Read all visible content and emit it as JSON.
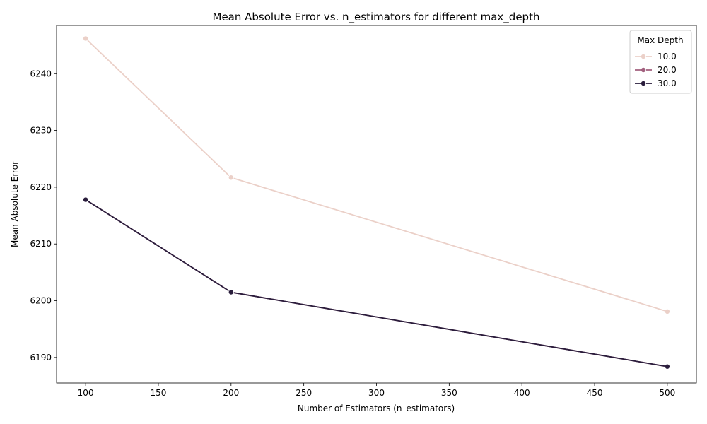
{
  "chart_data": {
    "type": "line",
    "title": "Mean Absolute Error vs. n_estimators for different max_depth",
    "xlabel": "Number of Estimators (n_estimators)",
    "ylabel": "Mean Absolute Error",
    "x": [
      100,
      200,
      500
    ],
    "xlim": [
      80,
      520
    ],
    "ylim": [
      6185.5,
      6248.5
    ],
    "xticks": [
      100,
      150,
      200,
      250,
      300,
      350,
      400,
      450,
      500
    ],
    "yticks": [
      6190,
      6200,
      6210,
      6220,
      6230,
      6240
    ],
    "grid": false,
    "legend": {
      "title": "Max Depth",
      "placement": "top-right"
    },
    "series": [
      {
        "name": "10.0",
        "color": "#ebd0c8",
        "values": [
          6246.2,
          6221.7,
          6198.1
        ]
      },
      {
        "name": "20.0",
        "color": "#a2607e",
        "values": [
          6217.8,
          6201.5,
          6188.4
        ]
      },
      {
        "name": "30.0",
        "color": "#2a1d3c",
        "values": [
          6217.8,
          6201.5,
          6188.4
        ]
      }
    ]
  }
}
